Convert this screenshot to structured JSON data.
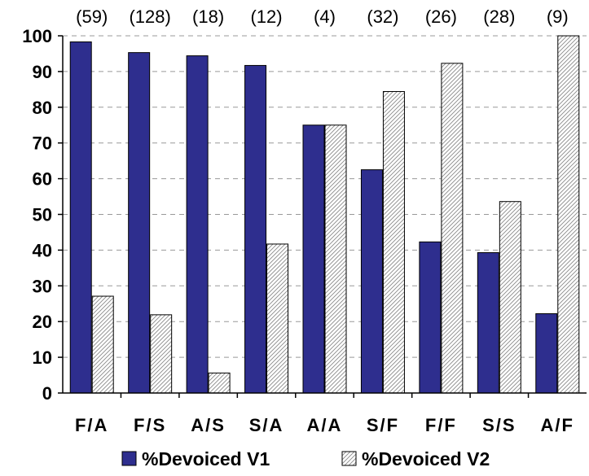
{
  "chart_data": {
    "type": "bar",
    "categories": [
      "F/A",
      "F/S",
      "A/S",
      "S/A",
      "A/A",
      "S/F",
      "F/F",
      "S/S",
      "A/F"
    ],
    "counts": [
      "(59)",
      "(128)",
      "(18)",
      "(12)",
      "(4)",
      "(32)",
      "(26)",
      "(28)",
      "(9)"
    ],
    "series": [
      {
        "name": "%Devoiced V1",
        "color": "#2e2e8e",
        "pattern": "solid",
        "values": [
          98.3,
          95.3,
          94.4,
          91.7,
          75,
          62.5,
          42.3,
          39.3,
          22.2
        ]
      },
      {
        "name": "%Devoiced V2",
        "color": "#ffffff",
        "pattern": "diagonal-hatch",
        "values": [
          27.1,
          21.9,
          5.6,
          41.7,
          75,
          84.4,
          92.3,
          53.6,
          100
        ]
      }
    ],
    "y_ticks": [
      "0",
      "10",
      "20",
      "30",
      "40",
      "50",
      "60",
      "70",
      "80",
      "90",
      "100"
    ],
    "ylim": [
      0,
      100
    ],
    "grid": "dashed horizontal",
    "legend_position": "bottom"
  }
}
